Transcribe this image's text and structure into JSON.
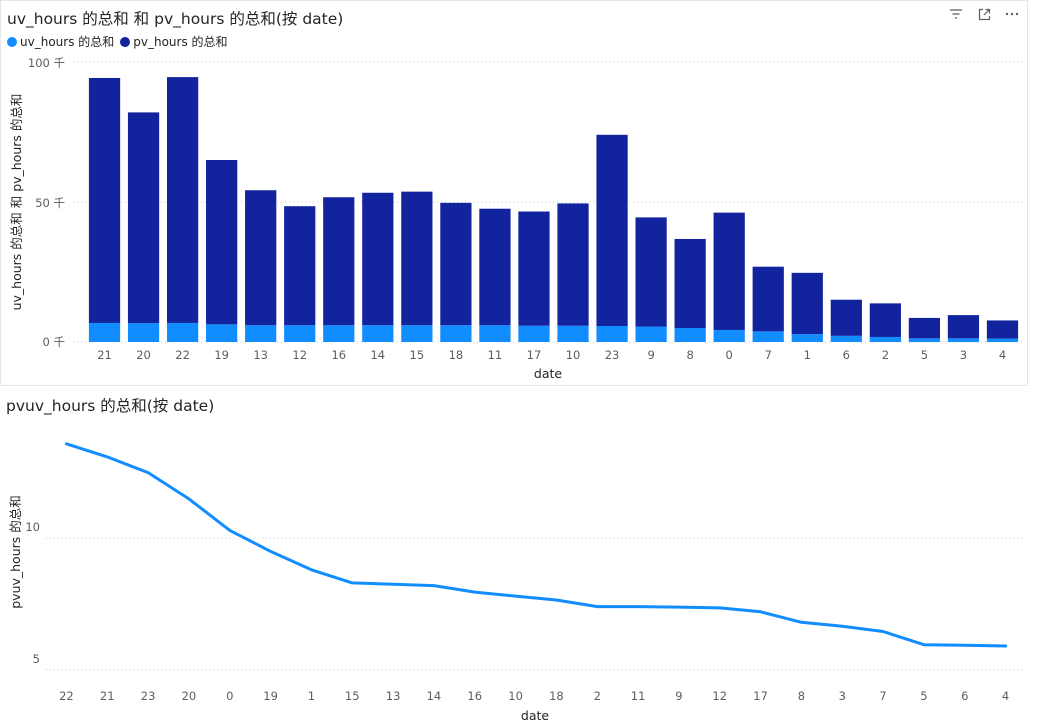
{
  "charts": {
    "top": {
      "title": "uv_hours 的总和 和 pv_hours 的总和(按 date)",
      "legend": [
        "uv_hours 的总和",
        "pv_hours 的总和"
      ],
      "xlabel": "date",
      "ylabel": "uv_hours 的总和 和 pv_hours 的总和",
      "ytick_labels": [
        "0 千",
        "50 千",
        "100 千"
      ]
    },
    "bottom": {
      "title": "pvuv_hours 的总和(按 date)",
      "xlabel": "date",
      "ylabel": "pvuv_hours 的总和",
      "ytick_labels": [
        "5",
        "10"
      ]
    }
  },
  "colors": {
    "uv": "#118DFF",
    "pv": "#12239E",
    "line": "#118DFF",
    "grid": "#c8c8c8"
  },
  "icons": [
    "filter-icon",
    "focus-mode-icon",
    "more-options-icon"
  ],
  "chart_data": [
    {
      "type": "bar",
      "stacked": true,
      "title": "uv_hours 的总和 和 pv_hours 的总和(按 date)",
      "xlabel": "date",
      "ylabel": "uv_hours 的总和 和 pv_hours 的总和",
      "categories": [
        "21",
        "20",
        "22",
        "19",
        "13",
        "12",
        "16",
        "14",
        "15",
        "18",
        "11",
        "17",
        "10",
        "23",
        "9",
        "8",
        "0",
        "7",
        "1",
        "6",
        "2",
        "5",
        "3",
        "4"
      ],
      "series": [
        {
          "name": "uv_hours 的总和",
          "values": [
            6800,
            6700,
            6800,
            6300,
            6000,
            6000,
            6000,
            6000,
            6000,
            6000,
            6000,
            5800,
            5800,
            5700,
            5500,
            5000,
            4300,
            3800,
            2800,
            2200,
            1800,
            1300,
            1300,
            1200
          ]
        },
        {
          "name": "pv_hours 的总和",
          "values": [
            87500,
            75300,
            87800,
            58700,
            48200,
            42500,
            45700,
            47300,
            47700,
            43700,
            41600,
            40800,
            43700,
            68300,
            39000,
            31800,
            41900,
            23100,
            21900,
            12900,
            12000,
            7300,
            8300,
            6500
          ]
        }
      ],
      "ylim": [
        0,
        100000
      ],
      "yticks": [
        0,
        50000,
        100000
      ],
      "grid": true,
      "legend_position": "top-left"
    },
    {
      "type": "line",
      "title": "pvuv_hours 的总和(按 date)",
      "xlabel": "date",
      "ylabel": "pvuv_hours 的总和",
      "x": [
        "22",
        "21",
        "23",
        "20",
        "0",
        "19",
        "1",
        "15",
        "13",
        "14",
        "16",
        "10",
        "18",
        "2",
        "11",
        "9",
        "12",
        "17",
        "8",
        "3",
        "7",
        "5",
        "6",
        "4"
      ],
      "series": [
        {
          "values": [
            13.6,
            13.1,
            12.5,
            11.5,
            10.3,
            9.5,
            8.8,
            8.3,
            8.25,
            8.2,
            7.95,
            7.8,
            7.65,
            7.4,
            7.4,
            7.38,
            7.35,
            7.2,
            6.8,
            6.65,
            6.45,
            5.95,
            5.93,
            5.9
          ]
        }
      ],
      "ylim": [
        4.3,
        14.2
      ],
      "yticks": [
        5,
        10
      ],
      "grid": true
    }
  ]
}
